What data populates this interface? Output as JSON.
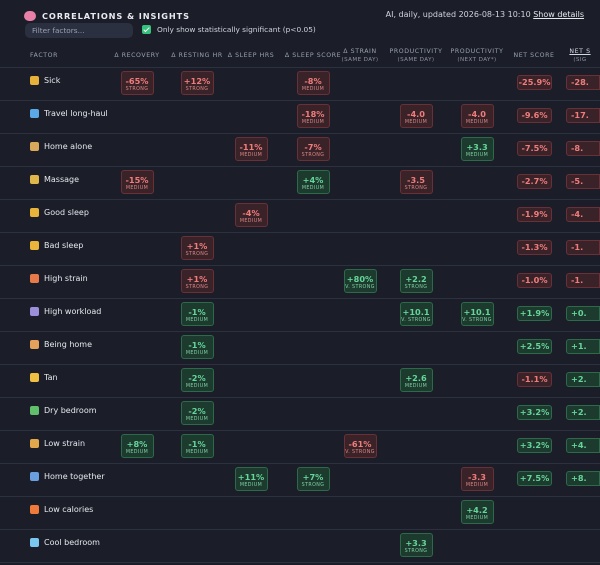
{
  "header": {
    "title": "CORRELATIONS & INSIGHTS",
    "meta_text": "AI, daily, updated 2026-08-13 10:10",
    "meta_link": "Show details",
    "filter_placeholder": "Filter factors...",
    "significance_label": "Only show statistically significant (p<0.05)",
    "significance_checked": true
  },
  "columns": [
    {
      "key": "factor",
      "label": "FACTOR",
      "sub": ""
    },
    {
      "key": "recovery",
      "label": "Δ RECOVERY",
      "sub": ""
    },
    {
      "key": "resting_hr",
      "label": "Δ RESTING HR",
      "sub": ""
    },
    {
      "key": "sleep_hrs",
      "label": "Δ SLEEP HRS",
      "sub": ""
    },
    {
      "key": "sleep_score",
      "label": "Δ SLEEP SCORE",
      "sub": ""
    },
    {
      "key": "strain",
      "label": "Δ STRAIN",
      "sub": "(SAME DAY)"
    },
    {
      "key": "prod_same",
      "label": "PRODUCTIVITY",
      "sub": "(SAME DAY)"
    },
    {
      "key": "prod_next",
      "label": "PRODUCTIVITY",
      "sub": "(NEXT DAY*)"
    },
    {
      "key": "net_score",
      "label": "NET SCORE",
      "sub": ""
    },
    {
      "key": "net_sig",
      "label": "NET S",
      "sub": "(SIG"
    }
  ],
  "icon_colors": {
    "sick": "#e6b23a",
    "travel": "#5aa9e6",
    "home_alone": "#d9a85a",
    "massage": "#e0b84a",
    "good_sleep": "#e8b43a",
    "bad_sleep": "#e8b43a",
    "high_strain": "#e87a4a",
    "high_workload": "#9a8fd8",
    "being_home": "#e6a15a",
    "tan": "#f0c040",
    "dry_bedroom": "#5fbf6a",
    "low_strain": "#e0a84a",
    "home_together": "#6aa0e0",
    "low_calories": "#f07a3a",
    "cool_bedroom": "#7ac8f0"
  },
  "rows": [
    {
      "name": "Sick",
      "icon": "sick-face-icon",
      "cells": {
        "recovery": [
          "-65%",
          "STRONG",
          "neg"
        ],
        "resting_hr": [
          "+12%",
          "STRONG",
          "neg"
        ],
        "sleep_score": [
          "-8%",
          "MEDIUM",
          "neg"
        ]
      },
      "net": [
        "-25.9%",
        "neg"
      ],
      "net_sig": [
        "-28.",
        "neg"
      ]
    },
    {
      "name": "Travel long-haul",
      "icon": "airplane-icon",
      "cells": {
        "sleep_score": [
          "-18%",
          "MEDIUM",
          "neg"
        ],
        "prod_same": [
          "-4.0",
          "MEDIUM",
          "neg"
        ],
        "prod_next": [
          "-4.0",
          "MEDIUM",
          "neg"
        ]
      },
      "net": [
        "-9.6%",
        "neg"
      ],
      "net_sig": [
        "-17.",
        "neg"
      ]
    },
    {
      "name": "Home alone",
      "icon": "person-icon",
      "cells": {
        "sleep_hrs": [
          "-11%",
          "MEDIUM",
          "neg"
        ],
        "sleep_score": [
          "-7%",
          "STRONG",
          "neg"
        ],
        "prod_next": [
          "+3.3",
          "MEDIUM",
          "pos"
        ]
      },
      "net": [
        "-7.5%",
        "neg"
      ],
      "net_sig": [
        "-8.",
        "neg"
      ]
    },
    {
      "name": "Massage",
      "icon": "massage-icon",
      "cells": {
        "recovery": [
          "-15%",
          "MEDIUM",
          "neg"
        ],
        "sleep_score": [
          "+4%",
          "MEDIUM",
          "pos"
        ],
        "prod_same": [
          "-3.5",
          "STRONG",
          "neg"
        ]
      },
      "net": [
        "-2.7%",
        "neg"
      ],
      "net_sig": [
        "-5.",
        "neg"
      ]
    },
    {
      "name": "Good sleep",
      "icon": "smile-icon",
      "cells": {
        "sleep_hrs": [
          "-4%",
          "MEDIUM",
          "neg"
        ]
      },
      "net": [
        "-1.9%",
        "neg"
      ],
      "net_sig": [
        "-4.",
        "neg"
      ]
    },
    {
      "name": "Bad sleep",
      "icon": "sleepy-face-icon",
      "cells": {
        "resting_hr": [
          "+1%",
          "STRONG",
          "neg"
        ]
      },
      "net": [
        "-1.3%",
        "neg"
      ],
      "net_sig": [
        "-1.",
        "neg"
      ]
    },
    {
      "name": "High strain",
      "icon": "hot-face-icon",
      "cells": {
        "resting_hr": [
          "+1%",
          "STRONG",
          "neg"
        ],
        "strain": [
          "+80%",
          "V. STRONG",
          "pos"
        ],
        "prod_same": [
          "+2.2",
          "STRONG",
          "pos"
        ]
      },
      "net": [
        "-1.0%",
        "neg"
      ],
      "net_sig": [
        "-1.",
        "neg"
      ]
    },
    {
      "name": "High workload",
      "icon": "chart-icon",
      "cells": {
        "resting_hr": [
          "-1%",
          "MEDIUM",
          "pos"
        ],
        "prod_same": [
          "+10.1",
          "V. STRONG",
          "pos"
        ],
        "prod_next": [
          "+10.1",
          "V. STRONG",
          "pos"
        ]
      },
      "net": [
        "+1.9%",
        "pos"
      ],
      "net_sig": [
        "+0.",
        "pos"
      ]
    },
    {
      "name": "Being home",
      "icon": "house-icon",
      "cells": {
        "resting_hr": [
          "-1%",
          "MEDIUM",
          "pos"
        ]
      },
      "net": [
        "+2.5%",
        "pos"
      ],
      "net_sig": [
        "+1.",
        "pos"
      ]
    },
    {
      "name": "Tan",
      "icon": "sun-icon",
      "cells": {
        "resting_hr": [
          "-2%",
          "MEDIUM",
          "pos"
        ],
        "prod_same": [
          "+2.6",
          "MEDIUM",
          "pos"
        ]
      },
      "net": [
        "-1.1%",
        "neg"
      ],
      "net_sig": [
        "+2.",
        "pos"
      ]
    },
    {
      "name": "Dry bedroom",
      "icon": "cactus-icon",
      "cells": {
        "resting_hr": [
          "-2%",
          "MEDIUM",
          "pos"
        ]
      },
      "net": [
        "+3.2%",
        "pos"
      ],
      "net_sig": [
        "+2.",
        "pos"
      ]
    },
    {
      "name": "Low strain",
      "icon": "meditation-icon",
      "cells": {
        "recovery": [
          "+8%",
          "MEDIUM",
          "pos"
        ],
        "resting_hr": [
          "-1%",
          "MEDIUM",
          "pos"
        ],
        "strain": [
          "-61%",
          "V. STRONG",
          "neg"
        ]
      },
      "net": [
        "+3.2%",
        "pos"
      ],
      "net_sig": [
        "+4.",
        "pos"
      ]
    },
    {
      "name": "Home together",
      "icon": "people-icon",
      "cells": {
        "sleep_hrs": [
          "+11%",
          "MEDIUM",
          "pos"
        ],
        "sleep_score": [
          "+7%",
          "STRONG",
          "pos"
        ],
        "prod_next": [
          "-3.3",
          "MEDIUM",
          "neg"
        ]
      },
      "net": [
        "+7.5%",
        "pos"
      ],
      "net_sig": [
        "+8.",
        "pos"
      ]
    },
    {
      "name": "Low calories",
      "icon": "fire-icon",
      "cells": {
        "prod_next": [
          "+4.2",
          "MEDIUM",
          "pos"
        ]
      },
      "net": null,
      "net_sig": null
    },
    {
      "name": "Cool bedroom",
      "icon": "snowflake-icon",
      "cells": {
        "prod_same": [
          "+3.3",
          "STRONG",
          "pos"
        ]
      },
      "net": null,
      "net_sig": null
    }
  ]
}
